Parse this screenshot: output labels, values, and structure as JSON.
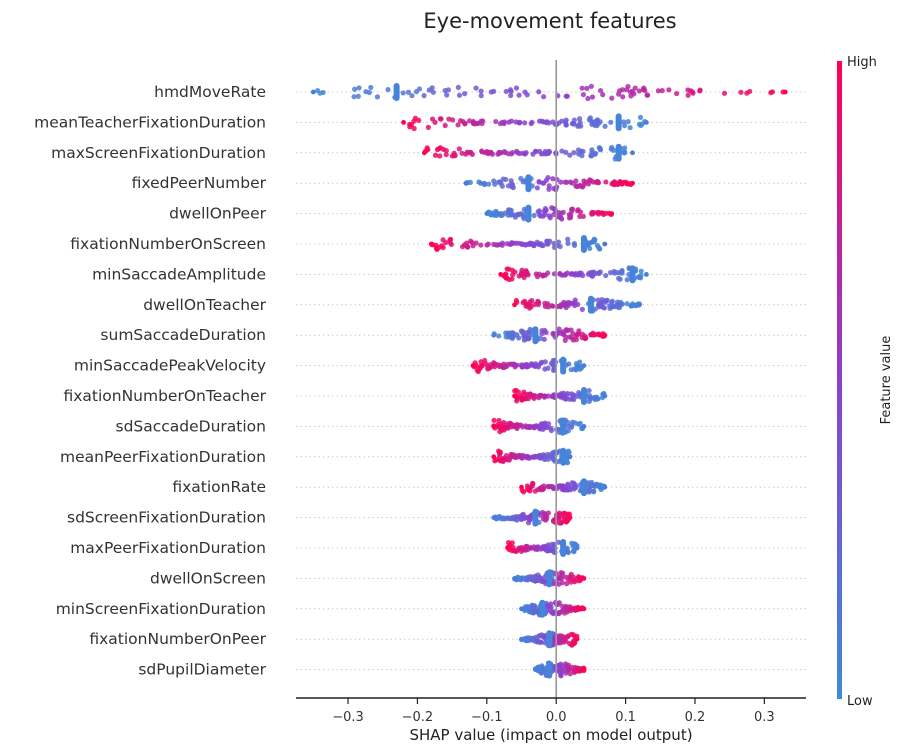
{
  "chart_data": {
    "type": "scatter",
    "subtype": "shap-beeswarm",
    "title": "Eye-movement features",
    "xlabel": "SHAP value (impact on model output)",
    "xlim": [
      -0.375,
      0.36
    ],
    "xticks": [
      -0.3,
      -0.2,
      -0.1,
      0.0,
      0.1,
      0.2,
      0.3
    ],
    "xtick_labels": [
      "−0.3",
      "−0.2",
      "−0.1",
      "0.0",
      "0.1",
      "0.2",
      "0.3"
    ],
    "zero_line": 0.0,
    "colorbar": {
      "label": "Feature value",
      "high_label": "High",
      "low_label": "Low",
      "high_color": "#ff0052",
      "mid_color": "#8b40d0",
      "low_color": "#3d8bd9"
    },
    "features": [
      {
        "name": "hmdMoveRate",
        "min": -0.35,
        "max": 0.33,
        "low_at": -0.23,
        "high_from": 0.05
      },
      {
        "name": "meanTeacherFixationDuration",
        "min": -0.22,
        "max": 0.13,
        "low_at": 0.09,
        "high_from": -0.22
      },
      {
        "name": "maxScreenFixationDuration",
        "min": -0.19,
        "max": 0.11,
        "low_at": 0.09,
        "high_from": -0.19
      },
      {
        "name": "fixedPeerNumber",
        "min": -0.13,
        "max": 0.11,
        "low_at": -0.04,
        "high_from": 0.0
      },
      {
        "name": "dwellOnPeer",
        "min": -0.1,
        "max": 0.08,
        "low_at": -0.04,
        "high_from": 0.0
      },
      {
        "name": "fixationNumberOnScreen",
        "min": -0.18,
        "max": 0.07,
        "low_at": 0.04,
        "high_from": -0.18
      },
      {
        "name": "minSaccadeAmplitude",
        "min": -0.08,
        "max": 0.13,
        "low_at": 0.11,
        "high_from": -0.08
      },
      {
        "name": "dwellOnTeacher",
        "min": -0.06,
        "max": 0.12,
        "low_at": 0.05,
        "high_from": -0.06
      },
      {
        "name": "sumSaccadeDuration",
        "min": -0.09,
        "max": 0.07,
        "low_at": -0.03,
        "high_from": 0.01
      },
      {
        "name": "minSaccadePeakVelocity",
        "min": -0.12,
        "max": 0.04,
        "low_at": 0.01,
        "high_from": -0.12
      },
      {
        "name": "fixationNumberOnTeacher",
        "min": -0.06,
        "max": 0.07,
        "low_at": 0.04,
        "high_from": -0.06
      },
      {
        "name": "sdSaccadeDuration",
        "min": -0.09,
        "max": 0.04,
        "low_at": 0.01,
        "high_from": -0.09
      },
      {
        "name": "meanPeerFixationDuration",
        "min": -0.09,
        "max": 0.02,
        "low_at": 0.01,
        "high_from": -0.09
      },
      {
        "name": "fixationRate",
        "min": -0.05,
        "max": 0.07,
        "low_at": 0.04,
        "high_from": -0.05
      },
      {
        "name": "sdScreenFixationDuration",
        "min": -0.09,
        "max": 0.02,
        "low_at": -0.03,
        "high_from": 0.0
      },
      {
        "name": "maxPeerFixationDuration",
        "min": -0.07,
        "max": 0.03,
        "low_at": 0.01,
        "high_from": -0.07
      },
      {
        "name": "dwellOnScreen",
        "min": -0.06,
        "max": 0.04,
        "low_at": -0.01,
        "high_from": 0.01
      },
      {
        "name": "minScreenFixationDuration",
        "min": -0.05,
        "max": 0.04,
        "low_at": -0.02,
        "high_from": 0.0
      },
      {
        "name": "fixationNumberOnPeer",
        "min": -0.05,
        "max": 0.03,
        "low_at": -0.01,
        "high_from": 0.02
      },
      {
        "name": "sdPupilDiameter",
        "min": -0.03,
        "max": 0.04,
        "low_at": -0.01,
        "high_from": 0.01
      }
    ]
  }
}
